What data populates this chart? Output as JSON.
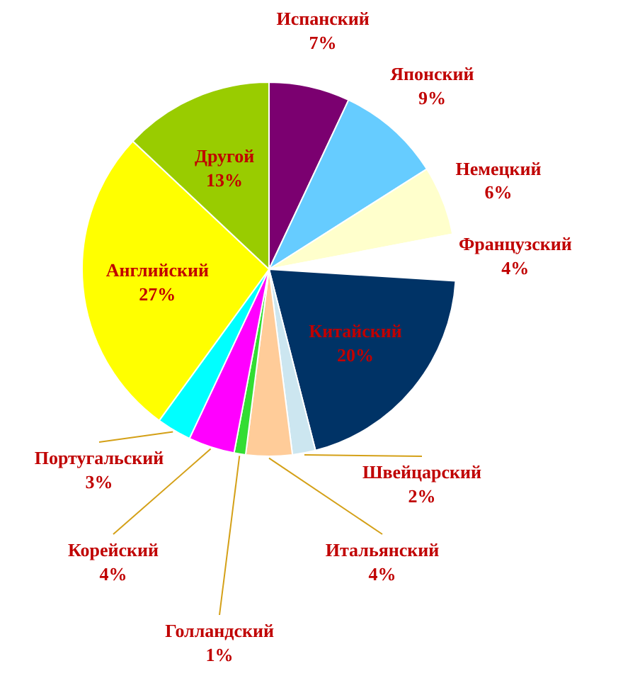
{
  "chart_data": {
    "type": "pie",
    "categories": [
      "Испанский",
      "Японский",
      "Немецкий",
      "Французский",
      "Китайский",
      "Швейцарский",
      "Итальянский",
      "Голландский",
      "Корейский",
      "Португальский",
      "Английский",
      "Другой"
    ],
    "values": [
      7,
      9,
      6,
      4,
      20,
      2,
      4,
      1,
      4,
      3,
      27,
      13
    ],
    "colors": [
      "#7b0070",
      "#66ccff",
      "#ffffcc",
      "#ffffff",
      "#003366",
      "#cce6f0",
      "#ffcc99",
      "#33dd33",
      "#ff00ff",
      "#00ffff",
      "#ffff00",
      "#99cc00"
    ],
    "value_labels": [
      "7%",
      "9%",
      "6%",
      "4%",
      "20%",
      "2%",
      "4%",
      "1%",
      "4%",
      "3%",
      "27%",
      "13%"
    ]
  }
}
